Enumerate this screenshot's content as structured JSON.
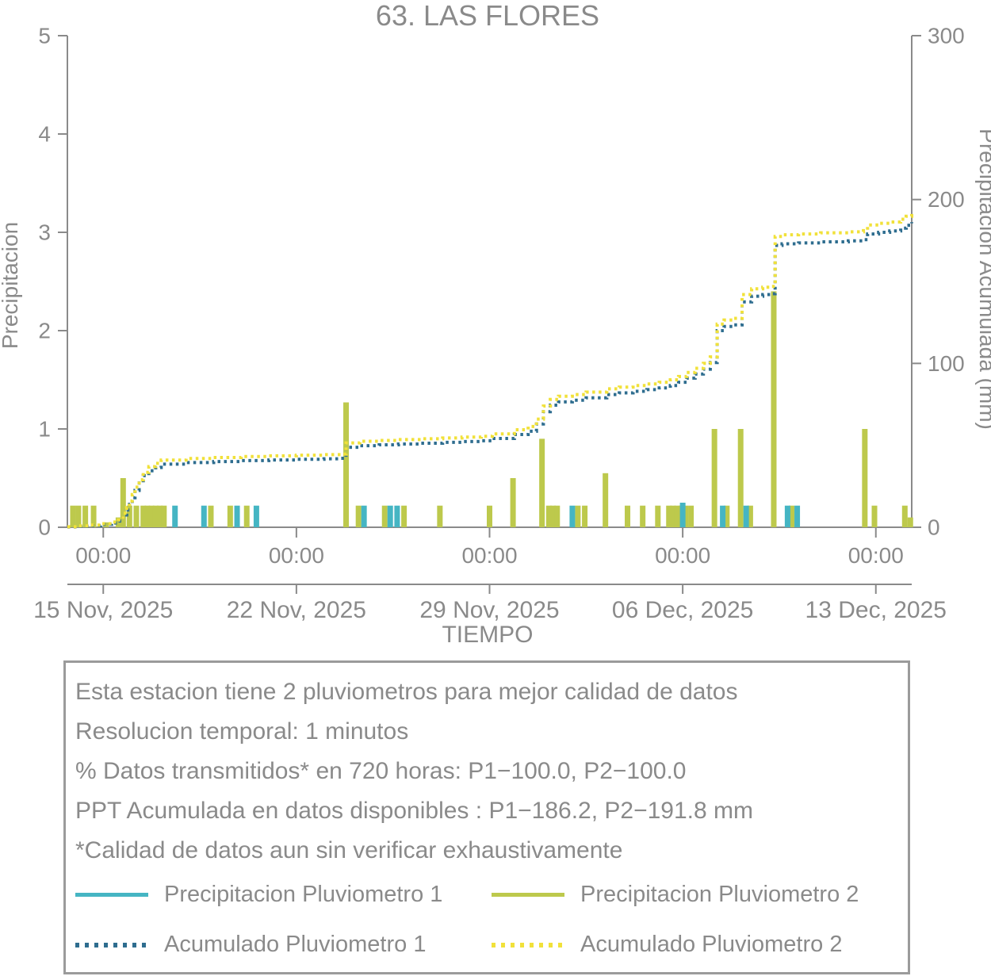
{
  "title": "63. LAS FLORES",
  "axes": {
    "left_label": "Precipitacion",
    "right_label": "Precipitacion Acumulada (mm)",
    "x_label": "TIEMPO",
    "left_ticks": [
      "0",
      "1",
      "2",
      "3",
      "4",
      "5"
    ],
    "right_ticks": [
      "0",
      "100",
      "200",
      "300"
    ],
    "time_tick_label": "00:00",
    "date_tick_labels": [
      "15 Nov, 2025",
      "22 Nov, 2025",
      "29 Nov, 2025",
      "06 Dec, 2025",
      "13 Dec, 2025"
    ]
  },
  "info_box": {
    "lines": [
      "Esta estacion tiene 2 pluviometros para mejor calidad de datos",
      "Resolucion temporal: 1 minutos",
      "% Datos transmitidos* en 720 horas: P1−100.0, P2−100.0",
      "PPT Acumulada en datos disponibles : P1−186.2, P2−191.8 mm",
      "*Calidad de datos aun sin verificar exhaustivamente"
    ],
    "legend": [
      {
        "label": "Precipitacion Pluviometro 1",
        "style": "solid",
        "color": "#45b5c3"
      },
      {
        "label": "Precipitacion Pluviometro 2",
        "style": "solid",
        "color": "#bdc94c"
      },
      {
        "label": "Acumulado Pluviometro 1",
        "style": "dotted",
        "color": "#2e6d8f"
      },
      {
        "label": "Acumulado Pluviometro 2",
        "style": "dotted",
        "color": "#f1e13a"
      }
    ]
  },
  "chart_data": {
    "type": "combo-bar-line",
    "title": "63. LAS FLORES",
    "xlabel": "TIEMPO",
    "ylabel_left": "Precipitacion",
    "ylabel_right": "Precipitacion Acumulada (mm)",
    "x_unit": "days since 15 Nov 2025 00:00",
    "xlim": [
      -1.3,
      29.3
    ],
    "ylim_left": [
      0,
      5
    ],
    "ylim_right": [
      0,
      300
    ],
    "x_ticks_days": [
      0,
      7,
      14,
      21,
      28
    ],
    "grid": false,
    "axis_color": "#8a8a8a",
    "series": [
      {
        "name": "Precipitacion Pluviometro 1",
        "type": "bar",
        "axis": "left",
        "color": "#45b5c3",
        "points": [
          [
            2.6,
            0.22
          ],
          [
            3.65,
            0.22
          ],
          [
            4.85,
            0.22
          ],
          [
            5.55,
            0.22
          ],
          [
            9.45,
            0.22
          ],
          [
            10.4,
            0.22
          ],
          [
            10.65,
            0.22
          ],
          [
            17.0,
            0.22
          ],
          [
            21.0,
            0.25
          ],
          [
            22.45,
            0.22
          ],
          [
            23.3,
            0.22
          ],
          [
            24.8,
            0.22
          ],
          [
            25.15,
            0.22
          ]
        ]
      },
      {
        "name": "Precipitacion Pluviometro 2",
        "type": "bar",
        "axis": "left",
        "color": "#bdc94c",
        "points": [
          [
            -1.1,
            0.22
          ],
          [
            -0.9,
            0.22
          ],
          [
            -0.65,
            0.22
          ],
          [
            -0.35,
            0.22
          ],
          [
            0.1,
            0.05
          ],
          [
            0.55,
            0.1
          ],
          [
            0.72,
            0.5
          ],
          [
            0.95,
            0.22
          ],
          [
            1.2,
            0.22
          ],
          [
            1.45,
            0.22
          ],
          [
            1.6,
            0.22
          ],
          [
            1.75,
            0.22
          ],
          [
            1.9,
            0.22
          ],
          [
            2.05,
            0.22
          ],
          [
            2.2,
            0.22
          ],
          [
            3.9,
            0.22
          ],
          [
            4.6,
            0.22
          ],
          [
            5.2,
            0.22
          ],
          [
            8.8,
            1.27
          ],
          [
            9.25,
            0.22
          ],
          [
            10.2,
            0.22
          ],
          [
            10.9,
            0.22
          ],
          [
            12.2,
            0.22
          ],
          [
            14.0,
            0.22
          ],
          [
            14.85,
            0.5
          ],
          [
            15.9,
            0.9
          ],
          [
            16.15,
            0.22
          ],
          [
            16.3,
            0.22
          ],
          [
            16.45,
            0.22
          ],
          [
            17.2,
            0.22
          ],
          [
            17.45,
            0.22
          ],
          [
            18.2,
            0.55
          ],
          [
            19.0,
            0.22
          ],
          [
            19.55,
            0.22
          ],
          [
            20.1,
            0.22
          ],
          [
            20.5,
            0.22
          ],
          [
            20.65,
            0.22
          ],
          [
            20.8,
            0.22
          ],
          [
            20.95,
            0.22
          ],
          [
            21.1,
            0.22
          ],
          [
            21.3,
            0.22
          ],
          [
            22.15,
            1.0
          ],
          [
            22.6,
            0.22
          ],
          [
            23.1,
            1.0
          ],
          [
            23.45,
            0.22
          ],
          [
            24.3,
            2.4
          ],
          [
            24.95,
            0.22
          ],
          [
            27.6,
            1.0
          ],
          [
            27.95,
            0.22
          ],
          [
            29.05,
            0.22
          ],
          [
            29.25,
            0.1
          ]
        ]
      },
      {
        "name": "Acumulado Pluviometro 1",
        "type": "line-dotted",
        "axis": "right",
        "color": "#2e6d8f",
        "total_mm": 186.2,
        "points": [
          [
            -1.3,
            0.2
          ],
          [
            -0.9,
            0.6
          ],
          [
            -0.5,
            1.0
          ],
          [
            -0.1,
            1.8
          ],
          [
            0.3,
            2.6
          ],
          [
            0.55,
            3.8
          ],
          [
            0.72,
            7.5
          ],
          [
            0.85,
            10.5
          ],
          [
            0.95,
            14
          ],
          [
            1.05,
            18
          ],
          [
            1.15,
            22.5
          ],
          [
            1.3,
            27
          ],
          [
            1.45,
            31.5
          ],
          [
            1.65,
            34.5
          ],
          [
            1.9,
            36.5
          ],
          [
            2.1,
            38.5
          ],
          [
            3.0,
            39.5
          ],
          [
            4.0,
            40.1
          ],
          [
            5.0,
            40.7
          ],
          [
            6.0,
            41.1
          ],
          [
            7.0,
            41.5
          ],
          [
            8.0,
            41.8
          ],
          [
            8.6,
            42.1
          ],
          [
            8.8,
            48.8
          ],
          [
            9.3,
            49.8
          ],
          [
            10.0,
            50.3
          ],
          [
            10.7,
            50.8
          ],
          [
            11.5,
            51.3
          ],
          [
            12.3,
            51.8
          ],
          [
            13.0,
            52.3
          ],
          [
            13.7,
            52.8
          ],
          [
            14.1,
            54.2
          ],
          [
            14.9,
            56.6
          ],
          [
            15.4,
            58.6
          ],
          [
            15.7,
            63
          ],
          [
            15.95,
            70.5
          ],
          [
            16.2,
            74.5
          ],
          [
            16.5,
            76.5
          ],
          [
            17.0,
            77.5
          ],
          [
            17.5,
            79
          ],
          [
            18.25,
            81
          ],
          [
            18.7,
            82
          ],
          [
            19.2,
            83
          ],
          [
            19.7,
            84
          ],
          [
            20.15,
            85
          ],
          [
            20.55,
            86.5
          ],
          [
            20.85,
            88.5
          ],
          [
            21.15,
            91
          ],
          [
            21.45,
            93.5
          ],
          [
            21.75,
            96.5
          ],
          [
            22.0,
            100.5
          ],
          [
            22.25,
            120
          ],
          [
            22.5,
            122.5
          ],
          [
            22.8,
            123.5
          ],
          [
            23.15,
            137.5
          ],
          [
            23.5,
            141
          ],
          [
            23.9,
            142
          ],
          [
            24.2,
            142.5
          ],
          [
            24.35,
            172
          ],
          [
            24.6,
            173
          ],
          [
            25.2,
            173.5
          ],
          [
            26.0,
            174.2
          ],
          [
            27.0,
            174.8
          ],
          [
            27.55,
            175.5
          ],
          [
            27.7,
            179
          ],
          [
            28.1,
            180
          ],
          [
            28.5,
            180.8
          ],
          [
            28.9,
            182.5
          ],
          [
            29.1,
            184.3
          ],
          [
            29.3,
            186.2
          ]
        ]
      },
      {
        "name": "Acumulado Pluviometro 2",
        "type": "line-dotted",
        "axis": "right",
        "color": "#f1e13a",
        "total_mm": 191.8,
        "points": [
          [
            -1.3,
            0.3
          ],
          [
            -0.9,
            0.8
          ],
          [
            -0.5,
            1.3
          ],
          [
            -0.1,
            2.2
          ],
          [
            0.3,
            3.2
          ],
          [
            0.55,
            4.5
          ],
          [
            0.72,
            8.5
          ],
          [
            0.85,
            12
          ],
          [
            0.95,
            16
          ],
          [
            1.05,
            20
          ],
          [
            1.15,
            24.5
          ],
          [
            1.3,
            29
          ],
          [
            1.45,
            33.5
          ],
          [
            1.65,
            37
          ],
          [
            1.9,
            39
          ],
          [
            2.1,
            41
          ],
          [
            3.0,
            42
          ],
          [
            4.0,
            42.6
          ],
          [
            5.0,
            43.2
          ],
          [
            6.0,
            43.6
          ],
          [
            7.0,
            44
          ],
          [
            8.0,
            44.3
          ],
          [
            8.6,
            44.6
          ],
          [
            8.8,
            51.5
          ],
          [
            9.3,
            52.5
          ],
          [
            10.0,
            53
          ],
          [
            10.7,
            53.5
          ],
          [
            11.5,
            54
          ],
          [
            12.3,
            54.5
          ],
          [
            13.0,
            55
          ],
          [
            13.7,
            55.5
          ],
          [
            14.1,
            57
          ],
          [
            14.9,
            59.5
          ],
          [
            15.4,
            61.5
          ],
          [
            15.7,
            66
          ],
          [
            15.95,
            74
          ],
          [
            16.2,
            78
          ],
          [
            16.5,
            80
          ],
          [
            17.0,
            81
          ],
          [
            17.5,
            82.5
          ],
          [
            18.25,
            84.5
          ],
          [
            18.7,
            85.5
          ],
          [
            19.2,
            86.5
          ],
          [
            19.7,
            87.5
          ],
          [
            20.15,
            88.5
          ],
          [
            20.55,
            90
          ],
          [
            20.85,
            92
          ],
          [
            21.15,
            94.5
          ],
          [
            21.45,
            97
          ],
          [
            21.75,
            100
          ],
          [
            22.0,
            104
          ],
          [
            22.25,
            124
          ],
          [
            22.5,
            126.5
          ],
          [
            22.8,
            127.5
          ],
          [
            23.15,
            142
          ],
          [
            23.5,
            145.5
          ],
          [
            23.9,
            146.5
          ],
          [
            24.2,
            147
          ],
          [
            24.35,
            177.5
          ],
          [
            24.6,
            178.5
          ],
          [
            25.2,
            179
          ],
          [
            26.0,
            179.7
          ],
          [
            27.0,
            180.3
          ],
          [
            27.55,
            181
          ],
          [
            27.7,
            184.5
          ],
          [
            28.1,
            185.5
          ],
          [
            28.5,
            186.3
          ],
          [
            28.9,
            188
          ],
          [
            29.1,
            189.8
          ],
          [
            29.3,
            191.8
          ]
        ]
      }
    ]
  }
}
